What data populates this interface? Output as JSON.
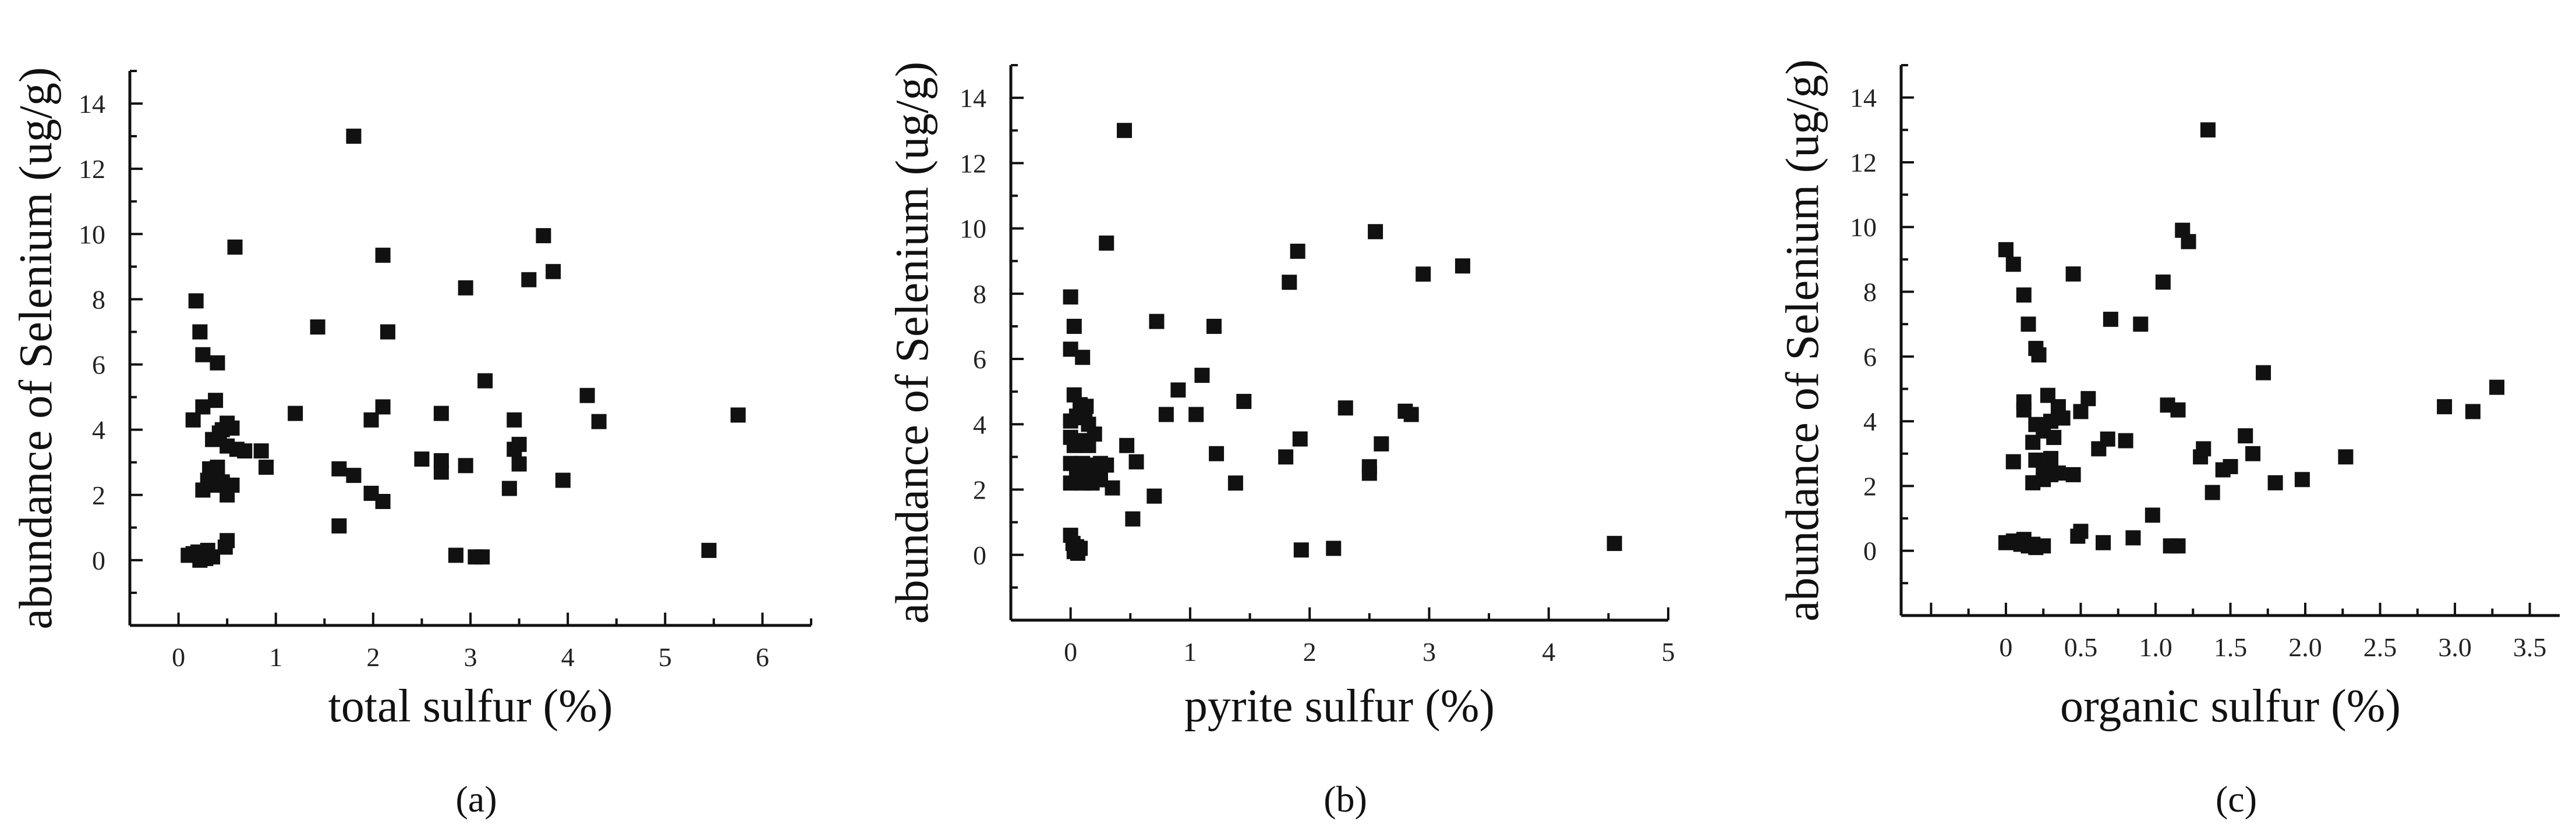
{
  "chart_data": [
    {
      "type": "scatter",
      "caption": "(a)",
      "xlabel": "total sulfur (%)",
      "ylabel": "abundance of Selenium (ug/g)",
      "xlim": [
        -0.5,
        6.5
      ],
      "ylim": [
        -2,
        15
      ],
      "xticks": [
        "0",
        "1",
        "2",
        "3",
        "4",
        "5",
        "6"
      ],
      "yticks": [
        "0",
        "2",
        "4",
        "6",
        "8",
        "10",
        "12",
        "14"
      ],
      "marker_color": "#111111",
      "points": [
        [
          0.1,
          0.15
        ],
        [
          0.15,
          0.2
        ],
        [
          0.2,
          0.25
        ],
        [
          0.25,
          0.1
        ],
        [
          0.28,
          0.05
        ],
        [
          0.3,
          0.3
        ],
        [
          0.22,
          0.0
        ],
        [
          0.35,
          0.1
        ],
        [
          0.18,
          7.95
        ],
        [
          0.22,
          7.0
        ],
        [
          0.25,
          6.3
        ],
        [
          0.4,
          6.05
        ],
        [
          0.15,
          4.3
        ],
        [
          0.25,
          4.7
        ],
        [
          0.38,
          4.9
        ],
        [
          0.45,
          4.0
        ],
        [
          0.5,
          4.2
        ],
        [
          0.55,
          4.05
        ],
        [
          0.35,
          3.7
        ],
        [
          0.42,
          3.9
        ],
        [
          0.5,
          3.5
        ],
        [
          0.6,
          3.4
        ],
        [
          0.68,
          3.35
        ],
        [
          0.32,
          2.8
        ],
        [
          0.4,
          2.85
        ],
        [
          0.3,
          2.45
        ],
        [
          0.38,
          2.3
        ],
        [
          0.45,
          2.4
        ],
        [
          0.55,
          2.3
        ],
        [
          0.25,
          2.15
        ],
        [
          0.5,
          2.0
        ],
        [
          0.48,
          0.4
        ],
        [
          0.5,
          0.6
        ],
        [
          0.58,
          9.6
        ],
        [
          0.85,
          3.35
        ],
        [
          0.9,
          2.85
        ],
        [
          1.2,
          4.5
        ],
        [
          1.43,
          7.15
        ],
        [
          1.65,
          2.8
        ],
        [
          1.65,
          1.05
        ],
        [
          1.8,
          13.0
        ],
        [
          1.8,
          2.6
        ],
        [
          1.98,
          4.3
        ],
        [
          1.98,
          2.05
        ],
        [
          2.1,
          9.35
        ],
        [
          2.1,
          4.7
        ],
        [
          2.1,
          1.8
        ],
        [
          2.15,
          7.0
        ],
        [
          2.5,
          3.1
        ],
        [
          2.7,
          4.5
        ],
        [
          2.7,
          3.05
        ],
        [
          2.7,
          2.7
        ],
        [
          2.85,
          0.15
        ],
        [
          2.95,
          8.35
        ],
        [
          2.95,
          2.9
        ],
        [
          3.05,
          0.1
        ],
        [
          3.12,
          0.1
        ],
        [
          3.15,
          5.5
        ],
        [
          3.4,
          2.2
        ],
        [
          3.45,
          4.3
        ],
        [
          3.45,
          3.4
        ],
        [
          3.5,
          3.55
        ],
        [
          3.5,
          2.95
        ],
        [
          3.6,
          8.6
        ],
        [
          3.75,
          9.95
        ],
        [
          3.85,
          8.85
        ],
        [
          3.95,
          2.45
        ],
        [
          4.2,
          5.05
        ],
        [
          4.32,
          4.25
        ],
        [
          5.45,
          0.3
        ],
        [
          5.75,
          4.45
        ]
      ]
    },
    {
      "type": "scatter",
      "caption": "(b)",
      "xlabel": "pyrite sulfur (%)",
      "ylabel": "abundance of Selenium (ug/g)",
      "xlim": [
        -0.5,
        5
      ],
      "ylim": [
        -2,
        15
      ],
      "xticks": [
        "0",
        "1",
        "2",
        "3",
        "4",
        "5"
      ],
      "yticks": [
        "0",
        "2",
        "4",
        "6",
        "8",
        "10",
        "12",
        "14"
      ],
      "marker_color": "#111111",
      "points": [
        [
          0.0,
          7.9
        ],
        [
          0.03,
          7.0
        ],
        [
          0.0,
          6.3
        ],
        [
          0.1,
          6.05
        ],
        [
          0.03,
          4.9
        ],
        [
          0.08,
          4.6
        ],
        [
          0.13,
          4.55
        ],
        [
          0.0,
          4.1
        ],
        [
          0.05,
          4.25
        ],
        [
          0.12,
          4.2
        ],
        [
          0.15,
          4.0
        ],
        [
          0.2,
          3.7
        ],
        [
          0.0,
          3.6
        ],
        [
          0.08,
          3.5
        ],
        [
          0.15,
          3.35
        ],
        [
          0.03,
          3.35
        ],
        [
          0.0,
          2.8
        ],
        [
          0.1,
          2.8
        ],
        [
          0.2,
          2.75
        ],
        [
          0.25,
          2.8
        ],
        [
          0.3,
          2.75
        ],
        [
          0.15,
          2.5
        ],
        [
          0.2,
          2.45
        ],
        [
          0.05,
          2.35
        ],
        [
          0.0,
          2.2
        ],
        [
          0.1,
          2.2
        ],
        [
          0.18,
          2.2
        ],
        [
          0.25,
          2.3
        ],
        [
          0.35,
          2.05
        ],
        [
          0.0,
          0.6
        ],
        [
          0.02,
          0.35
        ],
        [
          0.05,
          0.25
        ],
        [
          0.03,
          0.1
        ],
        [
          0.06,
          0.05
        ],
        [
          0.08,
          0.2
        ],
        [
          0.3,
          9.55
        ],
        [
          0.45,
          13.0
        ],
        [
          0.47,
          3.35
        ],
        [
          0.55,
          2.85
        ],
        [
          0.52,
          1.1
        ],
        [
          0.7,
          1.8
        ],
        [
          0.72,
          7.15
        ],
        [
          0.8,
          4.3
        ],
        [
          0.9,
          5.05
        ],
        [
          1.05,
          4.3
        ],
        [
          1.1,
          5.5
        ],
        [
          1.2,
          7.0
        ],
        [
          1.22,
          3.1
        ],
        [
          1.38,
          2.2
        ],
        [
          1.45,
          4.7
        ],
        [
          1.8,
          3.0
        ],
        [
          1.83,
          8.35
        ],
        [
          1.9,
          9.3
        ],
        [
          1.92,
          3.55
        ],
        [
          1.93,
          0.15
        ],
        [
          2.2,
          0.2
        ],
        [
          2.3,
          4.5
        ],
        [
          2.5,
          2.5
        ],
        [
          2.5,
          2.7
        ],
        [
          2.55,
          9.9
        ],
        [
          2.6,
          3.4
        ],
        [
          2.8,
          4.4
        ],
        [
          2.85,
          4.3
        ],
        [
          2.95,
          8.6
        ],
        [
          3.28,
          8.85
        ],
        [
          4.55,
          0.35
        ]
      ]
    },
    {
      "type": "scatter",
      "caption": "(c)",
      "xlabel": "organic sulfur (%)",
      "ylabel": "abundance of Selenium (ug/g)",
      "xlim": [
        -0.7,
        3.7
      ],
      "ylim": [
        -2,
        15
      ],
      "xticks": [
        "0",
        "0.5",
        "1.0",
        "1.5",
        "2.0",
        "2.5",
        "3.0",
        "3.5"
      ],
      "yticks": [
        "0",
        "2",
        "4",
        "6",
        "8",
        "10",
        "12",
        "14"
      ],
      "marker_color": "#111111",
      "points": [
        [
          0.0,
          0.25
        ],
        [
          0.05,
          0.3
        ],
        [
          0.1,
          0.2
        ],
        [
          0.12,
          0.35
        ],
        [
          0.15,
          0.15
        ],
        [
          0.18,
          0.2
        ],
        [
          0.2,
          0.1
        ],
        [
          0.25,
          0.15
        ],
        [
          0.0,
          9.3
        ],
        [
          0.05,
          8.85
        ],
        [
          0.12,
          7.9
        ],
        [
          0.15,
          7.0
        ],
        [
          0.2,
          6.25
        ],
        [
          0.22,
          6.05
        ],
        [
          0.12,
          4.6
        ],
        [
          0.12,
          4.35
        ],
        [
          0.28,
          4.8
        ],
        [
          0.35,
          4.45
        ],
        [
          0.38,
          4.1
        ],
        [
          0.2,
          3.9
        ],
        [
          0.3,
          4.0
        ],
        [
          0.25,
          3.7
        ],
        [
          0.18,
          3.35
        ],
        [
          0.32,
          3.5
        ],
        [
          0.05,
          2.75
        ],
        [
          0.2,
          2.8
        ],
        [
          0.3,
          2.85
        ],
        [
          0.25,
          2.45
        ],
        [
          0.3,
          2.35
        ],
        [
          0.35,
          2.4
        ],
        [
          0.18,
          2.1
        ],
        [
          0.25,
          2.2
        ],
        [
          0.45,
          2.35
        ],
        [
          0.45,
          8.55
        ],
        [
          0.48,
          0.45
        ],
        [
          0.5,
          0.6
        ],
        [
          0.5,
          4.3
        ],
        [
          0.55,
          4.7
        ],
        [
          0.62,
          3.15
        ],
        [
          0.65,
          0.25
        ],
        [
          0.68,
          3.45
        ],
        [
          0.7,
          7.15
        ],
        [
          0.8,
          3.4
        ],
        [
          0.85,
          0.4
        ],
        [
          0.9,
          7.0
        ],
        [
          0.98,
          1.1
        ],
        [
          1.05,
          8.3
        ],
        [
          1.08,
          4.5
        ],
        [
          1.1,
          0.15
        ],
        [
          1.15,
          0.15
        ],
        [
          1.15,
          4.35
        ],
        [
          1.18,
          9.9
        ],
        [
          1.22,
          9.55
        ],
        [
          1.3,
          2.9
        ],
        [
          1.32,
          3.15
        ],
        [
          1.35,
          13.0
        ],
        [
          1.38,
          1.8
        ],
        [
          1.45,
          2.5
        ],
        [
          1.5,
          2.6
        ],
        [
          1.6,
          3.55
        ],
        [
          1.65,
          3.0
        ],
        [
          1.72,
          5.5
        ],
        [
          1.8,
          2.1
        ],
        [
          1.98,
          2.2
        ],
        [
          2.27,
          2.9
        ],
        [
          2.93,
          4.45
        ],
        [
          3.12,
          4.3
        ],
        [
          3.28,
          5.05
        ]
      ]
    }
  ]
}
